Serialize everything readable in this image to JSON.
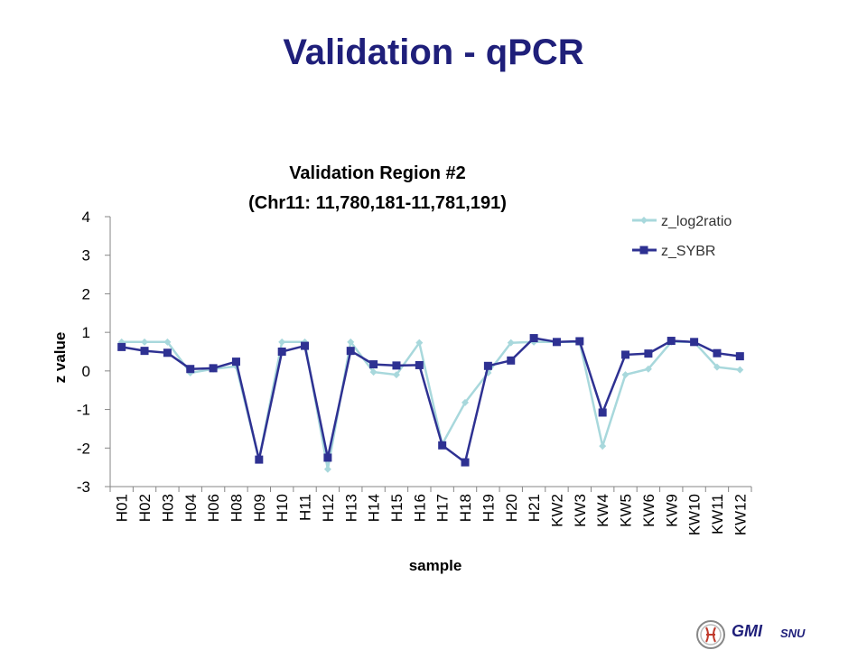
{
  "slide": {
    "title": "Validation - qPCR"
  },
  "logo": {
    "name": "GMI",
    "sub": "SNU"
  },
  "chart_data": {
    "type": "line",
    "title_lines": [
      "Validation Region #2",
      "(Chr11: 11,780,181-11,781,191)"
    ],
    "xlabel": "sample",
    "ylabel": "z value",
    "ylim": [
      -3,
      4
    ],
    "yticks": [
      4,
      3,
      2,
      1,
      0,
      -1,
      -2,
      -3
    ],
    "grid": false,
    "legend": "top-right",
    "categories": [
      "H01",
      "H02",
      "H03",
      "H04",
      "H06",
      "H08",
      "H09",
      "H10",
      "H11",
      "H12",
      "H13",
      "H14",
      "H15",
      "H16",
      "H17",
      "H18",
      "H19",
      "H20",
      "H21",
      "KW2",
      "KW3",
      "KW4",
      "KW5",
      "KW6",
      "KW9",
      "KW10",
      "KW11",
      "KW12"
    ],
    "series": [
      {
        "name": "z_log2ratio",
        "color": "#a8d8dc",
        "marker": "diamond",
        "values": [
          0.75,
          0.75,
          0.75,
          -0.05,
          0.05,
          0.12,
          -2.3,
          0.75,
          0.75,
          -2.55,
          0.75,
          -0.03,
          -0.1,
          0.73,
          -1.9,
          -0.82,
          -0.05,
          0.73,
          0.75,
          0.75,
          0.75,
          -1.95,
          -0.1,
          0.05,
          0.75,
          0.75,
          0.1,
          0.03
        ]
      },
      {
        "name": "z_SYBR",
        "color": "#2e3192",
        "marker": "square",
        "values": [
          0.62,
          0.52,
          0.47,
          0.05,
          0.07,
          0.24,
          -2.3,
          0.5,
          0.65,
          -2.25,
          0.52,
          0.17,
          0.14,
          0.15,
          -1.93,
          -2.37,
          0.13,
          0.27,
          0.85,
          0.75,
          0.77,
          -1.08,
          0.42,
          0.45,
          0.78,
          0.75,
          0.46,
          0.38
        ]
      }
    ]
  }
}
